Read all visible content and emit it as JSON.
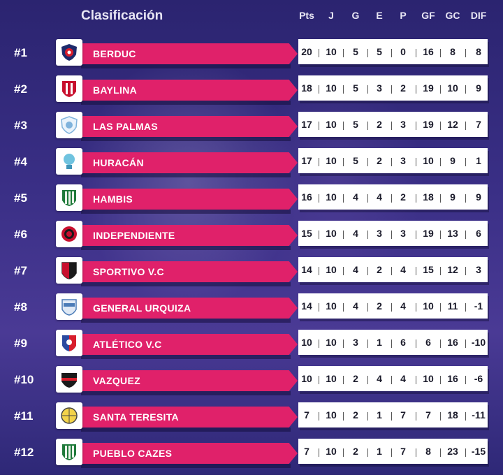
{
  "title": "Clasificación",
  "columns": [
    "Pts",
    "J",
    "G",
    "E",
    "P",
    "GF",
    "GC",
    "DIF"
  ],
  "colors": {
    "accent": "#e0216a",
    "background": "#3a2f86"
  },
  "rows": [
    {
      "rank": "#1",
      "team": "BERDUC",
      "logo": "shield-red-navy-icon",
      "stats": [
        "20",
        "10",
        "5",
        "5",
        "0",
        "16",
        "8",
        "8"
      ]
    },
    {
      "rank": "#2",
      "team": "BAYLINA",
      "logo": "shield-red-stripes-icon",
      "stats": [
        "18",
        "10",
        "5",
        "3",
        "2",
        "19",
        "10",
        "9"
      ]
    },
    {
      "rank": "#3",
      "team": "LAS PALMAS",
      "logo": "shield-lightblue-icon",
      "stats": [
        "17",
        "10",
        "5",
        "2",
        "3",
        "19",
        "12",
        "7"
      ]
    },
    {
      "rank": "#4",
      "team": "HURACÁN",
      "logo": "balloon-icon",
      "stats": [
        "17",
        "10",
        "5",
        "2",
        "3",
        "10",
        "9",
        "1"
      ]
    },
    {
      "rank": "#5",
      "team": "HAMBIS",
      "logo": "shield-green-stripes-icon",
      "stats": [
        "16",
        "10",
        "4",
        "4",
        "2",
        "18",
        "9",
        "9"
      ]
    },
    {
      "rank": "#6",
      "team": "INDEPENDIENTE",
      "logo": "crest-red-circle-icon",
      "stats": [
        "15",
        "10",
        "4",
        "3",
        "3",
        "19",
        "13",
        "6"
      ]
    },
    {
      "rank": "#7",
      "team": "SPORTIVO V.C",
      "logo": "shield-red-black-icon",
      "stats": [
        "14",
        "10",
        "4",
        "2",
        "4",
        "15",
        "12",
        "3"
      ]
    },
    {
      "rank": "#8",
      "team": "GENERAL URQUIZA",
      "logo": "shield-blue-white-icon",
      "stats": [
        "14",
        "10",
        "4",
        "2",
        "4",
        "10",
        "11",
        "-1"
      ]
    },
    {
      "rank": "#9",
      "team": "ATLÉTICO V.C",
      "logo": "shield-blue-red-icon",
      "stats": [
        "10",
        "10",
        "3",
        "1",
        "6",
        "6",
        "16",
        "-10"
      ]
    },
    {
      "rank": "#10",
      "team": "VAZQUEZ",
      "logo": "shield-black-red-icon",
      "stats": [
        "10",
        "10",
        "2",
        "4",
        "4",
        "10",
        "16",
        "-6"
      ]
    },
    {
      "rank": "#11",
      "team": "SANTA TERESITA",
      "logo": "crest-yellow-icon",
      "stats": [
        "7",
        "10",
        "2",
        "1",
        "7",
        "7",
        "18",
        "-11"
      ]
    },
    {
      "rank": "#12",
      "team": "PUEBLO CAZES",
      "logo": "shield-green-stripes-icon",
      "stats": [
        "7",
        "10",
        "2",
        "1",
        "7",
        "8",
        "23",
        "-15"
      ]
    }
  ]
}
